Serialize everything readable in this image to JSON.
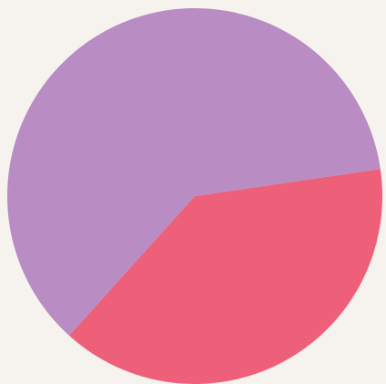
{
  "chart_data": {
    "type": "pie",
    "values": [
      39,
      61
    ],
    "colors": [
      "#ee6079",
      "#b98cc4"
    ]
  }
}
